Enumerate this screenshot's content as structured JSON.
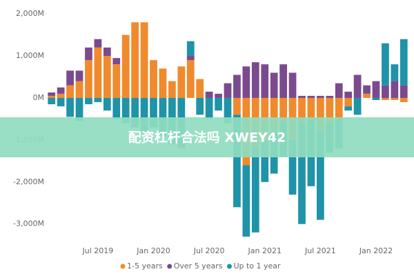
{
  "chart_data": {
    "type": "stacked-bar",
    "categories": [
      null,
      null,
      null,
      null,
      null,
      "Jul 2019",
      null,
      null,
      null,
      null,
      null,
      "Jan 2020",
      null,
      null,
      null,
      null,
      null,
      "Jul 2020",
      null,
      null,
      null,
      null,
      null,
      "Jan 2021",
      null,
      null,
      null,
      null,
      null,
      "Jul 2021",
      null,
      null,
      null,
      null,
      null,
      "Jan 2022",
      null,
      null,
      null
    ],
    "series": [
      {
        "name": "1-5 years",
        "color": "#f08a2c",
        "values": [
          50,
          100,
          300,
          400,
          900,
          1200,
          1000,
          800,
          1500,
          1800,
          1800,
          900,
          700,
          400,
          750,
          900,
          450,
          0,
          0,
          0,
          -400,
          -1600,
          -1200,
          -1000,
          -800,
          -600,
          -1000,
          -600,
          -500,
          -800,
          -600,
          -500,
          -200,
          0,
          100,
          0,
          -50,
          -50,
          -100
        ]
      },
      {
        "name": "Over 5 years",
        "color": "#7b4a8e",
        "values": [
          80,
          150,
          350,
          250,
          300,
          200,
          200,
          150,
          0,
          0,
          0,
          0,
          0,
          0,
          0,
          100,
          0,
          150,
          100,
          350,
          550,
          750,
          850,
          800,
          600,
          800,
          600,
          50,
          50,
          50,
          50,
          350,
          150,
          550,
          200,
          400,
          300,
          400,
          300
        ]
      },
      {
        "name": "Up to 1 year",
        "color": "#1f93a8",
        "values": [
          -150,
          -200,
          -450,
          -550,
          -150,
          -100,
          -300,
          -500,
          -600,
          -700,
          -800,
          -700,
          -900,
          -1100,
          -1200,
          350,
          -400,
          -500,
          -300,
          -600,
          -2200,
          -1700,
          -2000,
          -1000,
          -1000,
          -800,
          -1300,
          -2400,
          -1600,
          -2100,
          -700,
          -700,
          -100,
          -400,
          0,
          -50,
          1000,
          400,
          1100
        ]
      }
    ],
    "ylim": [
      -3350,
      2150
    ],
    "yticks": [
      {
        "value": -3000,
        "label": "-3,000M"
      },
      {
        "value": -2000,
        "label": "-2,000M"
      },
      {
        "value": -1000,
        "label": "-1,000M"
      },
      {
        "value": 0,
        "label": "0M"
      },
      {
        "value": 1000,
        "label": "1,000M"
      },
      {
        "value": 2000,
        "label": "2,000M"
      }
    ],
    "legend": "bottom",
    "watermark": "配资杠杆合法吗 XWEY42"
  }
}
